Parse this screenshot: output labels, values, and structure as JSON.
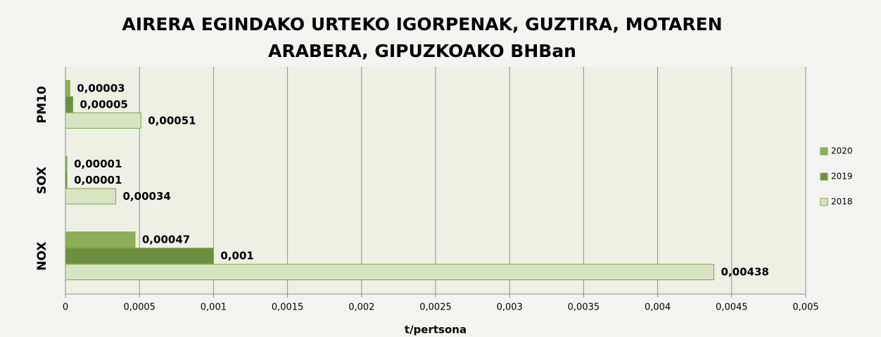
{
  "chart_data": {
    "type": "hbar",
    "title": [
      "AIRERA EGINDAKO URTEKO IGORPENAK, GUZTIRA, MOTAREN",
      "ARABERA, GIPUZKOAKO BHBan"
    ],
    "x_label": "t/pertsona",
    "categories": [
      "PM10",
      "SOX",
      "NOX"
    ],
    "series": [
      {
        "name": "2020",
        "color": "#8db056",
        "values": [
          3e-05,
          1e-05,
          0.00047
        ],
        "value_labels": [
          "0,00003",
          "0,00001",
          "0,00047"
        ]
      },
      {
        "name": "2019",
        "color": "#6e8f3d",
        "values": [
          5e-05,
          1e-05,
          0.001
        ],
        "value_labels": [
          "0,00005",
          "0,00001",
          "0,001"
        ]
      },
      {
        "name": "2018",
        "color": "#d8e5c2",
        "values": [
          0.00051,
          0.00034,
          0.00438
        ],
        "value_labels": [
          "0,00051",
          "0,00034",
          "0,00438"
        ]
      }
    ],
    "xlim": [
      0,
      0.005
    ],
    "xticks": [
      0,
      {
        "value": 0.0005,
        "label": "0,0005"
      },
      {
        "value": 0.001,
        "label": "0,001"
      },
      {
        "value": 0.0015,
        "label": "0,0015"
      },
      {
        "value": 0.002,
        "label": "0,002"
      },
      {
        "value": 0.0025,
        "label": "0,0025"
      },
      {
        "value": 0.003,
        "label": "0,003"
      },
      {
        "value": 0.0035,
        "label": "0,0035"
      },
      {
        "value": 0.004,
        "label": "0,004"
      },
      {
        "value": 0.0045,
        "label": "0,0045"
      },
      {
        "value": 0.005,
        "label": "0,005"
      }
    ],
    "grid": true,
    "legend": "right"
  }
}
